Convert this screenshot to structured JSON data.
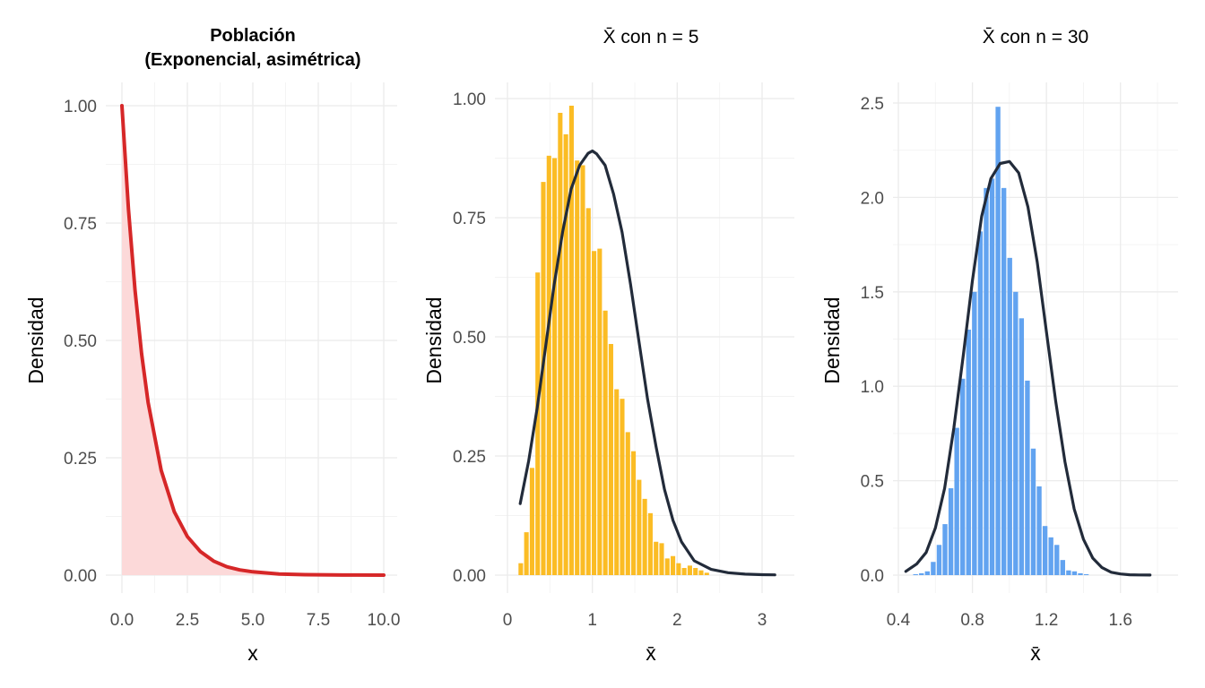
{
  "chart_data": [
    {
      "type": "area",
      "title": "Población",
      "subtitle": "(Exponencial, asimétrica)",
      "xlabel": "x",
      "ylabel": "Densidad",
      "xlim": [
        0,
        10
      ],
      "ylim": [
        0,
        1
      ],
      "xticks": [
        "0.0",
        "2.5",
        "5.0",
        "7.5",
        "10.0"
      ],
      "yticks": [
        "0.00",
        "0.25",
        "0.50",
        "0.75",
        "1.00"
      ],
      "grid": true,
      "colors": {
        "line": "#d62728",
        "fill": "#fcd9d9"
      },
      "series": [
        {
          "x": [
            0,
            0.25,
            0.5,
            0.75,
            1,
            1.5,
            2,
            2.5,
            3,
            3.5,
            4,
            4.5,
            5,
            6,
            7,
            8,
            9,
            10
          ],
          "y": [
            1,
            0.779,
            0.607,
            0.472,
            0.368,
            0.223,
            0.135,
            0.082,
            0.05,
            0.03,
            0.018,
            0.011,
            0.007,
            0.0025,
            0.0009,
            0.0003,
            0.0001,
            5e-05
          ]
        }
      ]
    },
    {
      "type": "bar",
      "title": "X̄ con n = 5",
      "xlabel": "x̄",
      "ylabel": "Densidad",
      "xlim": [
        0,
        3
      ],
      "ylim": [
        0,
        1
      ],
      "xticks": [
        "0",
        "1",
        "2",
        "3"
      ],
      "yticks": [
        "0.00",
        "0.25",
        "0.50",
        "0.75",
        "1.00"
      ],
      "grid": true,
      "colors": {
        "bars": "#fbbc24",
        "curve": "#222b3a"
      },
      "bin_start": 0.13,
      "bin_width": 0.0664,
      "values": [
        0.025,
        0.09,
        0.225,
        0.635,
        0.825,
        0.88,
        0.875,
        0.97,
        0.925,
        0.985,
        0.87,
        0.86,
        0.77,
        0.68,
        0.685,
        0.555,
        0.485,
        0.39,
        0.37,
        0.3,
        0.26,
        0.2,
        0.16,
        0.13,
        0.07,
        0.067,
        0.035,
        0.04,
        0.025,
        0.015,
        0.02,
        0.015,
        0.01,
        0.005
      ],
      "curve": {
        "x": [
          0.15,
          0.25,
          0.35,
          0.45,
          0.55,
          0.65,
          0.75,
          0.85,
          0.95,
          1.0,
          1.05,
          1.15,
          1.25,
          1.35,
          1.45,
          1.55,
          1.65,
          1.75,
          1.85,
          1.95,
          2.05,
          2.2,
          2.4,
          2.6,
          2.8,
          3.0,
          3.15
        ],
        "y": [
          0.15,
          0.24,
          0.35,
          0.48,
          0.61,
          0.72,
          0.81,
          0.86,
          0.885,
          0.89,
          0.884,
          0.86,
          0.8,
          0.72,
          0.61,
          0.49,
          0.37,
          0.27,
          0.18,
          0.115,
          0.07,
          0.03,
          0.012,
          0.005,
          0.002,
          0.001,
          0.0005
        ]
      }
    },
    {
      "type": "bar",
      "title": "X̄ con n = 30",
      "xlabel": "x̄",
      "ylabel": "Densidad",
      "xlim": [
        0.4,
        1.8
      ],
      "ylim": [
        0,
        2.5
      ],
      "xticks": [
        "0.4",
        "0.8",
        "1.2",
        "1.6"
      ],
      "yticks": [
        "0.0",
        "0.5",
        "1.0",
        "1.5",
        "2.0",
        "2.5"
      ],
      "grid": true,
      "colors": {
        "bars": "#62a3f0",
        "curve": "#222b3a"
      },
      "bin_start": 0.48,
      "bin_width": 0.0318,
      "values": [
        0.005,
        0.01,
        0.02,
        0.07,
        0.16,
        0.27,
        0.46,
        0.78,
        1.04,
        1.3,
        1.5,
        1.82,
        2.05,
        2.1,
        2.48,
        2.05,
        1.68,
        1.5,
        1.36,
        1.03,
        0.67,
        0.47,
        0.26,
        0.2,
        0.16,
        0.08,
        0.025,
        0.02,
        0.01,
        0.005
      ],
      "curve": {
        "x": [
          0.44,
          0.5,
          0.55,
          0.6,
          0.65,
          0.7,
          0.75,
          0.8,
          0.85,
          0.9,
          0.95,
          1.0,
          1.05,
          1.1,
          1.15,
          1.2,
          1.25,
          1.3,
          1.35,
          1.4,
          1.45,
          1.5,
          1.55,
          1.6,
          1.65,
          1.7,
          1.76
        ],
        "y": [
          0.02,
          0.06,
          0.12,
          0.25,
          0.46,
          0.78,
          1.16,
          1.56,
          1.9,
          2.1,
          2.18,
          2.19,
          2.13,
          1.95,
          1.66,
          1.29,
          0.92,
          0.6,
          0.35,
          0.19,
          0.09,
          0.04,
          0.015,
          0.006,
          0.002,
          0.001,
          0.0003
        ]
      }
    }
  ]
}
